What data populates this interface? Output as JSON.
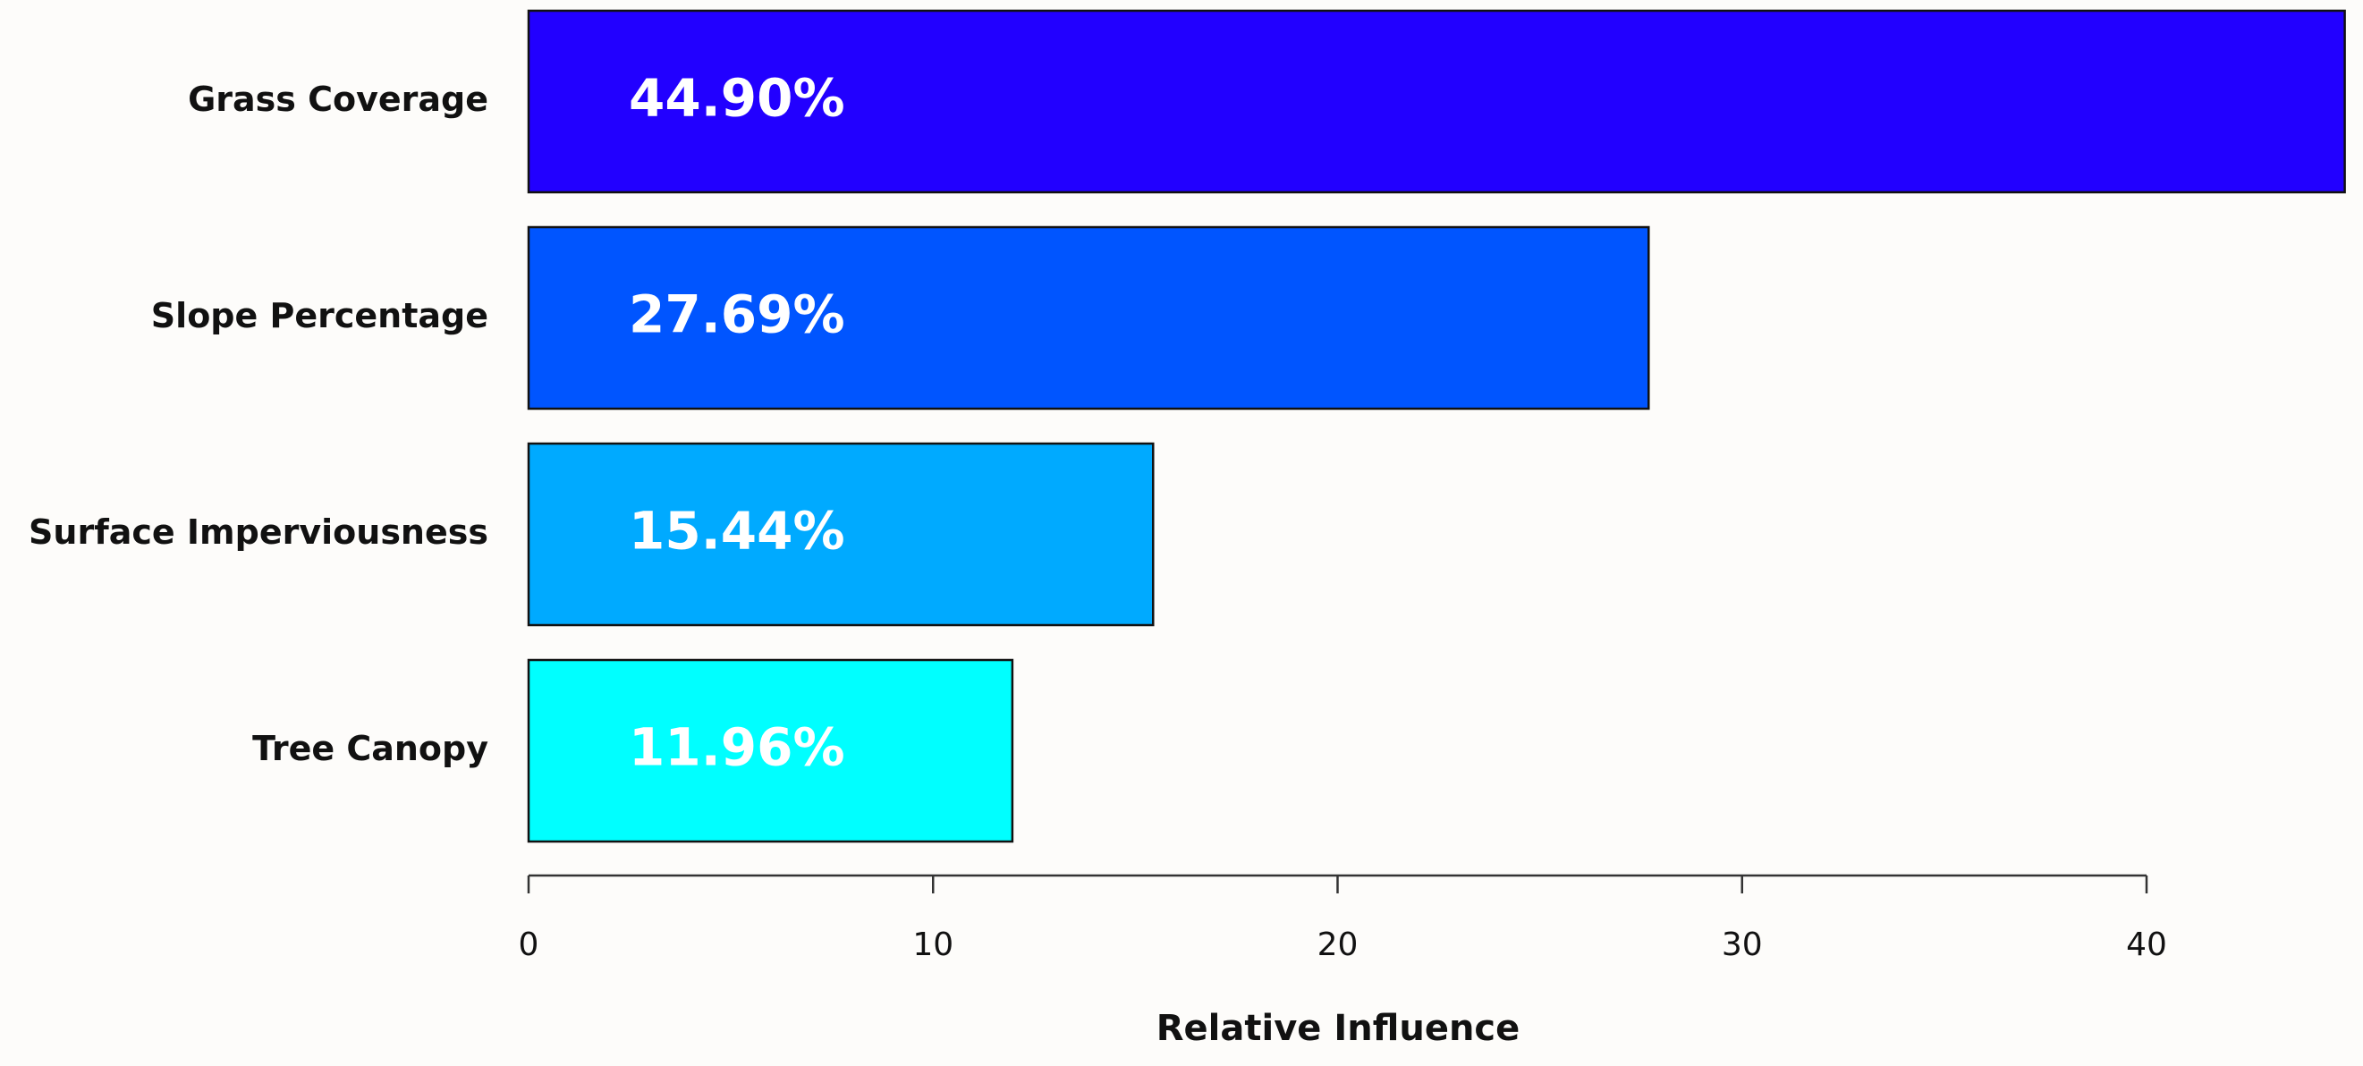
{
  "chart_data": {
    "type": "barh",
    "categories": [
      "Grass Coverage",
      "Slope Percentage",
      "Surface Imperviousness",
      "Tree Canopy"
    ],
    "values": [
      44.9,
      27.69,
      15.44,
      11.96
    ],
    "value_labels": [
      "44.90%",
      "27.69%",
      "15.44%",
      "11.96%"
    ],
    "colors": [
      "#2200ff",
      "#0055ff",
      "#00aaff",
      "#00ffff"
    ],
    "xlabel": "Relative Influence",
    "xlim": [
      0,
      40
    ],
    "xticks": [
      0,
      10,
      20,
      30,
      40
    ]
  }
}
